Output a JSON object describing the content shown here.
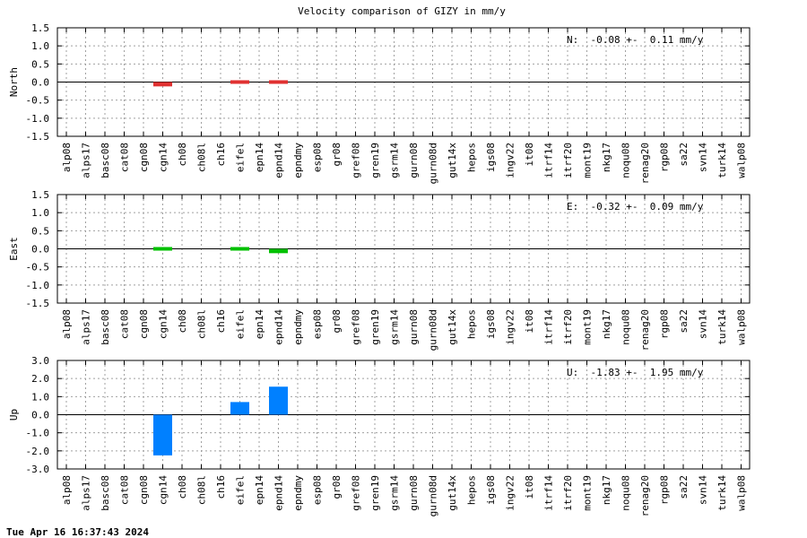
{
  "title": "Velocity comparison of GIZY in mm/y",
  "footer": "Tue Apr 16 16:37:43 2024",
  "chart_data": [
    {
      "type": "bar",
      "ylabel": "North",
      "annotation": "N:  -0.08 +-  0.11 mm/y",
      "ylim": [
        -1.5,
        1.5
      ],
      "yticks": [
        -1.5,
        -1.0,
        -0.5,
        0.0,
        0.5,
        1.0,
        1.5
      ],
      "ytick_labels": [
        "-1.5",
        "-1.0",
        "-0.5",
        "0.0",
        "0.5",
        "1.0",
        "1.5"
      ],
      "color": "#e03030",
      "grid": true,
      "categories": [
        "alp08",
        "alps17",
        "basc08",
        "cat08",
        "cgn08",
        "cgn14",
        "ch08",
        "ch08l",
        "ch16",
        "eifel",
        "epn14",
        "epnd14",
        "epndmy",
        "esp08",
        "gr08",
        "gref08",
        "gren19",
        "gsrm14",
        "gurn08",
        "gurn08d",
        "gut14x",
        "hepos",
        "igs08",
        "ingv22",
        "it08",
        "itrf14",
        "itrf20",
        "mont19",
        "nkg17",
        "noqu08",
        "renag20",
        "rgp08",
        "sa22",
        "svn14",
        "turk14",
        "walp08"
      ],
      "values": [
        null,
        null,
        null,
        null,
        null,
        -0.12,
        null,
        null,
        null,
        0.03,
        null,
        0.03,
        null,
        null,
        null,
        null,
        null,
        null,
        null,
        null,
        null,
        null,
        null,
        null,
        null,
        null,
        null,
        null,
        null,
        null,
        null,
        null,
        null,
        null,
        null,
        null
      ]
    },
    {
      "type": "bar",
      "ylabel": "East",
      "annotation": "E:  -0.32 +-  0.09 mm/y",
      "ylim": [
        -1.5,
        1.5
      ],
      "yticks": [
        -1.5,
        -1.0,
        -0.5,
        0.0,
        0.5,
        1.0,
        1.5
      ],
      "ytick_labels": [
        "-1.5",
        "-1.0",
        "-0.5",
        "0.0",
        "0.5",
        "1.0",
        "1.5"
      ],
      "color": "#00c000",
      "grid": true,
      "categories": [
        "alp08",
        "alps17",
        "basc08",
        "cat08",
        "cgn08",
        "cgn14",
        "ch08",
        "ch08l",
        "ch16",
        "eifel",
        "epn14",
        "epnd14",
        "epndmy",
        "esp08",
        "gr08",
        "gref08",
        "gren19",
        "gsrm14",
        "gurn08",
        "gurn08d",
        "gut14x",
        "hepos",
        "igs08",
        "ingv22",
        "it08",
        "itrf14",
        "itrf20",
        "mont19",
        "nkg17",
        "noqu08",
        "renag20",
        "rgp08",
        "sa22",
        "svn14",
        "turk14",
        "walp08"
      ],
      "values": [
        null,
        null,
        null,
        null,
        null,
        0.03,
        null,
        null,
        null,
        0.03,
        null,
        -0.12,
        null,
        null,
        null,
        null,
        null,
        null,
        null,
        null,
        null,
        null,
        null,
        null,
        null,
        null,
        null,
        null,
        null,
        null,
        null,
        null,
        null,
        null,
        null,
        null
      ]
    },
    {
      "type": "bar",
      "ylabel": "Up",
      "annotation": "U:  -1.83 +-  1.95 mm/y",
      "ylim": [
        -3.0,
        3.0
      ],
      "yticks": [
        -3.0,
        -2.0,
        -1.0,
        0.0,
        1.0,
        2.0,
        3.0
      ],
      "ytick_labels": [
        "-3.0",
        "-2.0",
        "-1.0",
        "0.0",
        "1.0",
        "2.0",
        "3.0"
      ],
      "color": "#0080ff",
      "grid": true,
      "categories": [
        "alp08",
        "alps17",
        "basc08",
        "cat08",
        "cgn08",
        "cgn14",
        "ch08",
        "ch08l",
        "ch16",
        "eifel",
        "epn14",
        "epnd14",
        "epndmy",
        "esp08",
        "gr08",
        "gref08",
        "gren19",
        "gsrm14",
        "gurn08",
        "gurn08d",
        "gut14x",
        "hepos",
        "igs08",
        "ingv22",
        "it08",
        "itrf14",
        "itrf20",
        "mont19",
        "nkg17",
        "noqu08",
        "renag20",
        "rgp08",
        "sa22",
        "svn14",
        "turk14",
        "walp08"
      ],
      "values": [
        null,
        null,
        null,
        null,
        null,
        -2.25,
        null,
        null,
        null,
        0.7,
        null,
        1.55,
        null,
        null,
        null,
        null,
        null,
        null,
        null,
        null,
        null,
        null,
        null,
        null,
        null,
        null,
        null,
        null,
        null,
        null,
        null,
        null,
        null,
        null,
        null,
        null
      ]
    }
  ]
}
